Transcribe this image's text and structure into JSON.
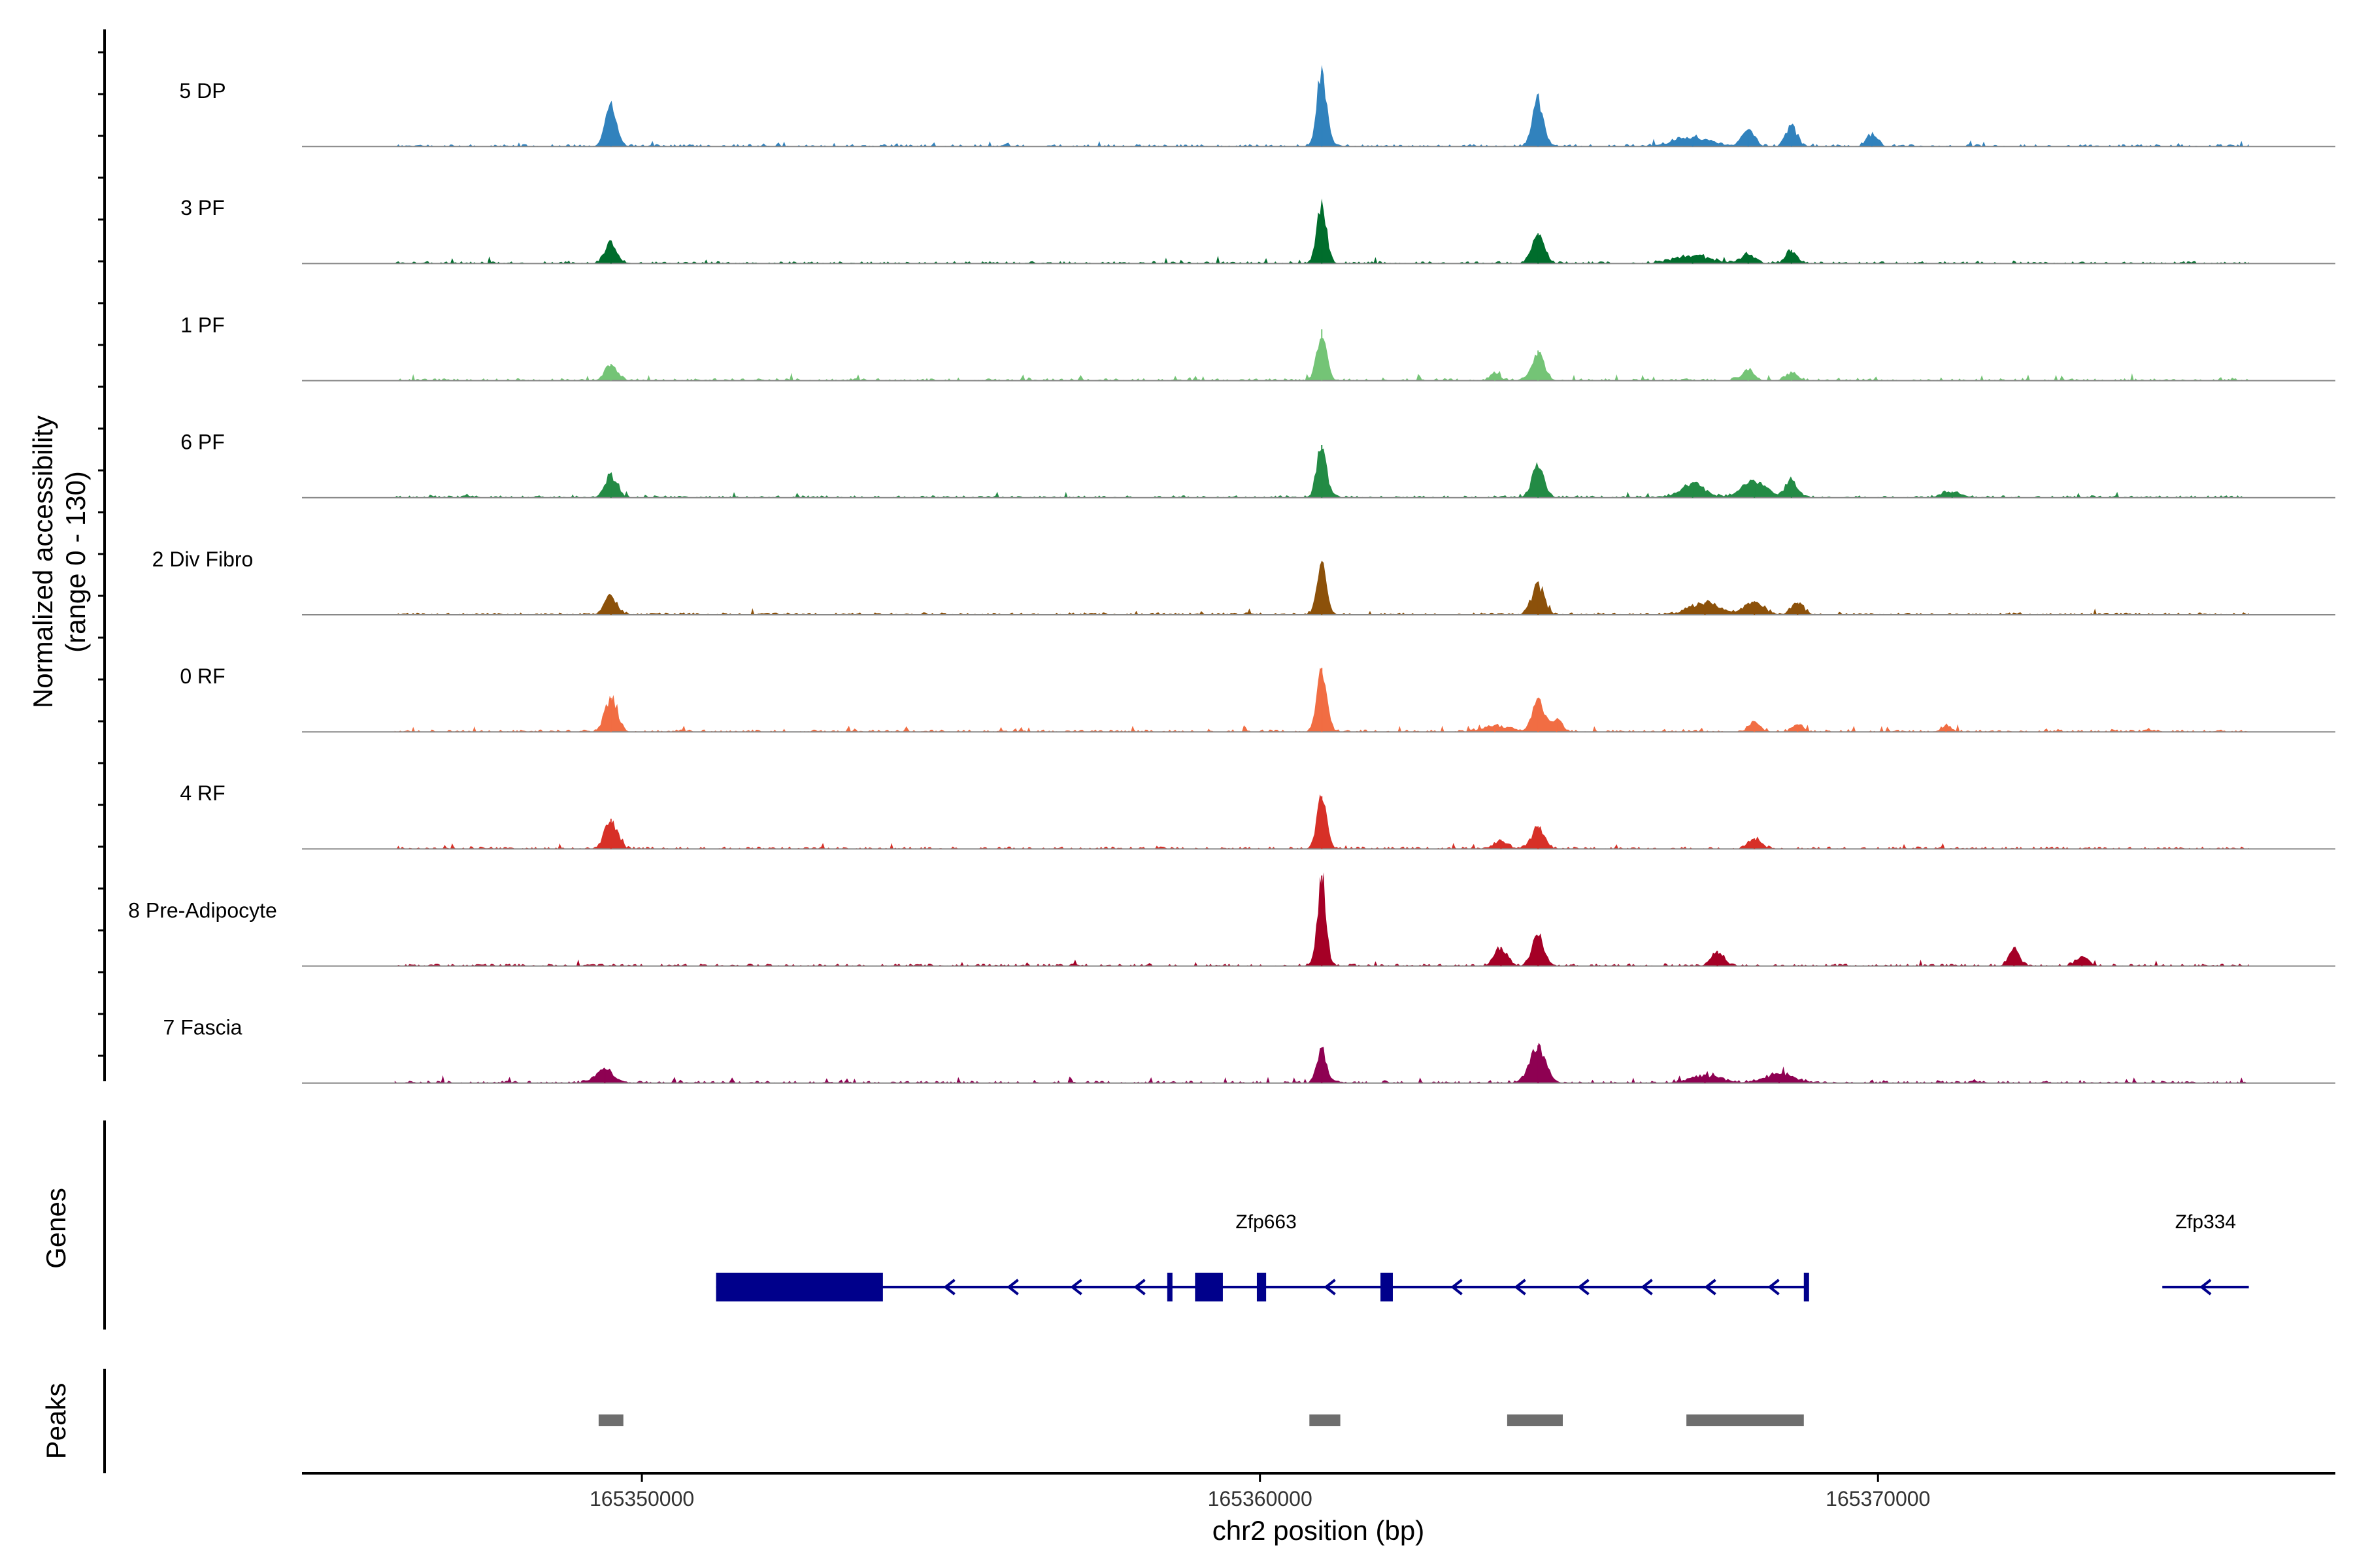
{
  "chart_data": {
    "type": "area",
    "title": "",
    "ylabel_line1": "Normalized accessibility",
    "ylabel_line2": "(range 0 - 130)",
    "ylim": [
      0,
      130
    ],
    "xlabel": "chr2 position (bp)",
    "xlim": [
      165344500,
      165377400
    ],
    "xticks": [
      165350000,
      165360000,
      165370000
    ],
    "xtick_labels": [
      "165350000",
      "165360000",
      "165370000"
    ],
    "peak_centers": [
      165349400,
      165361050,
      165364500,
      165368000
    ],
    "tracks": [
      {
        "name": "5 DP",
        "label": "5 DP",
        "color": "#3182bd",
        "peaks": [
          [
            165349500,
            55,
            90
          ],
          [
            165361000,
            100,
            80
          ],
          [
            165364500,
            60,
            90
          ],
          [
            165367000,
            12,
            300
          ],
          [
            165367900,
            22,
            100
          ],
          [
            165368600,
            28,
            90
          ],
          [
            165369900,
            14,
            90
          ]
        ]
      },
      {
        "name": "3 PF",
        "label": "3 PF",
        "color": "#006d2c",
        "peaks": [
          [
            165349500,
            28,
            100
          ],
          [
            165361000,
            75,
            80
          ],
          [
            165364500,
            40,
            100
          ],
          [
            165367000,
            10,
            300
          ],
          [
            165367900,
            12,
            120
          ],
          [
            165368600,
            18,
            90
          ]
        ]
      },
      {
        "name": "1 PF",
        "label": "1 PF",
        "color": "#74c476",
        "peaks": [
          [
            165349500,
            22,
            100
          ],
          [
            165361000,
            68,
            80
          ],
          [
            165364500,
            40,
            100
          ],
          [
            165363800,
            10,
            80
          ],
          [
            165367900,
            14,
            100
          ],
          [
            165368600,
            10,
            100
          ]
        ]
      },
      {
        "name": "6 PF",
        "label": "6 PF",
        "color": "#238b45",
        "peaks": [
          [
            165349500,
            30,
            100
          ],
          [
            165361000,
            70,
            80
          ],
          [
            165364500,
            40,
            100
          ],
          [
            165367000,
            18,
            200
          ],
          [
            165368000,
            22,
            200
          ],
          [
            165368600,
            22,
            100
          ],
          [
            165371200,
            8,
            150
          ]
        ]
      },
      {
        "name": "2 Div Fibro",
        "label": "2 Div Fibro",
        "color": "#8c510a",
        "peaks": [
          [
            165349500,
            25,
            100
          ],
          [
            165361000,
            65,
            80
          ],
          [
            165364500,
            40,
            100
          ],
          [
            165367200,
            16,
            250
          ],
          [
            165368000,
            18,
            150
          ],
          [
            165368700,
            16,
            100
          ]
        ]
      },
      {
        "name": "0 RF",
        "label": "0 RF",
        "color": "#f16d43",
        "peaks": [
          [
            165349500,
            45,
            100
          ],
          [
            165361000,
            85,
            80
          ],
          [
            165364500,
            40,
            100
          ],
          [
            165363800,
            8,
            200
          ],
          [
            165364800,
            16,
            90
          ],
          [
            165368000,
            14,
            90
          ],
          [
            165368700,
            10,
            90
          ],
          [
            165371100,
            8,
            80
          ]
        ]
      },
      {
        "name": "4 RF",
        "label": "4 RF",
        "color": "#d73027",
        "peaks": [
          [
            165349500,
            40,
            100
          ],
          [
            165361000,
            70,
            80
          ],
          [
            165364500,
            30,
            100
          ],
          [
            165363900,
            12,
            100
          ],
          [
            165368000,
            14,
            100
          ]
        ]
      },
      {
        "name": "8 Pre-Adipocyte",
        "label": "8 Pre-Adipocyte",
        "color": "#a50026",
        "peaks": [
          [
            165361000,
            120,
            70
          ],
          [
            165364500,
            40,
            100
          ],
          [
            165363900,
            25,
            100
          ],
          [
            165367400,
            20,
            100
          ],
          [
            165372200,
            25,
            80
          ],
          [
            165373300,
            12,
            100
          ]
        ]
      },
      {
        "name": "7 Fascia",
        "label": "7 Fascia",
        "color": "#8e0152",
        "peaks": [
          [
            165349400,
            18,
            150
          ],
          [
            165361000,
            45,
            80
          ],
          [
            165364500,
            50,
            130
          ],
          [
            165367200,
            10,
            250
          ],
          [
            165368400,
            12,
            250
          ]
        ]
      }
    ],
    "genes_track_label": "Genes",
    "genes": [
      {
        "name": "Zfp663",
        "label": "Zfp663",
        "start": 165351200,
        "end": 165368850,
        "strand": "-",
        "exons": [
          [
            165351200,
            165353900
          ],
          [
            165358500,
            165358570
          ],
          [
            165358950,
            165359400
          ],
          [
            165359950,
            165360100
          ],
          [
            165361950,
            165362150
          ],
          [
            165368800,
            165368850
          ]
        ]
      },
      {
        "name": "Zfp334",
        "label": "Zfp334",
        "start": 165374600,
        "end": 165376000,
        "strand": "-",
        "exons": []
      }
    ],
    "gene_color": "#00008b",
    "peaks_track_label": "Peaks",
    "peak_regions": [
      [
        165349300,
        165349700
      ],
      [
        165360800,
        165361300
      ],
      [
        165364000,
        165364900
      ],
      [
        165366900,
        165368800
      ]
    ],
    "peak_region_color": "#6e6e6e"
  }
}
